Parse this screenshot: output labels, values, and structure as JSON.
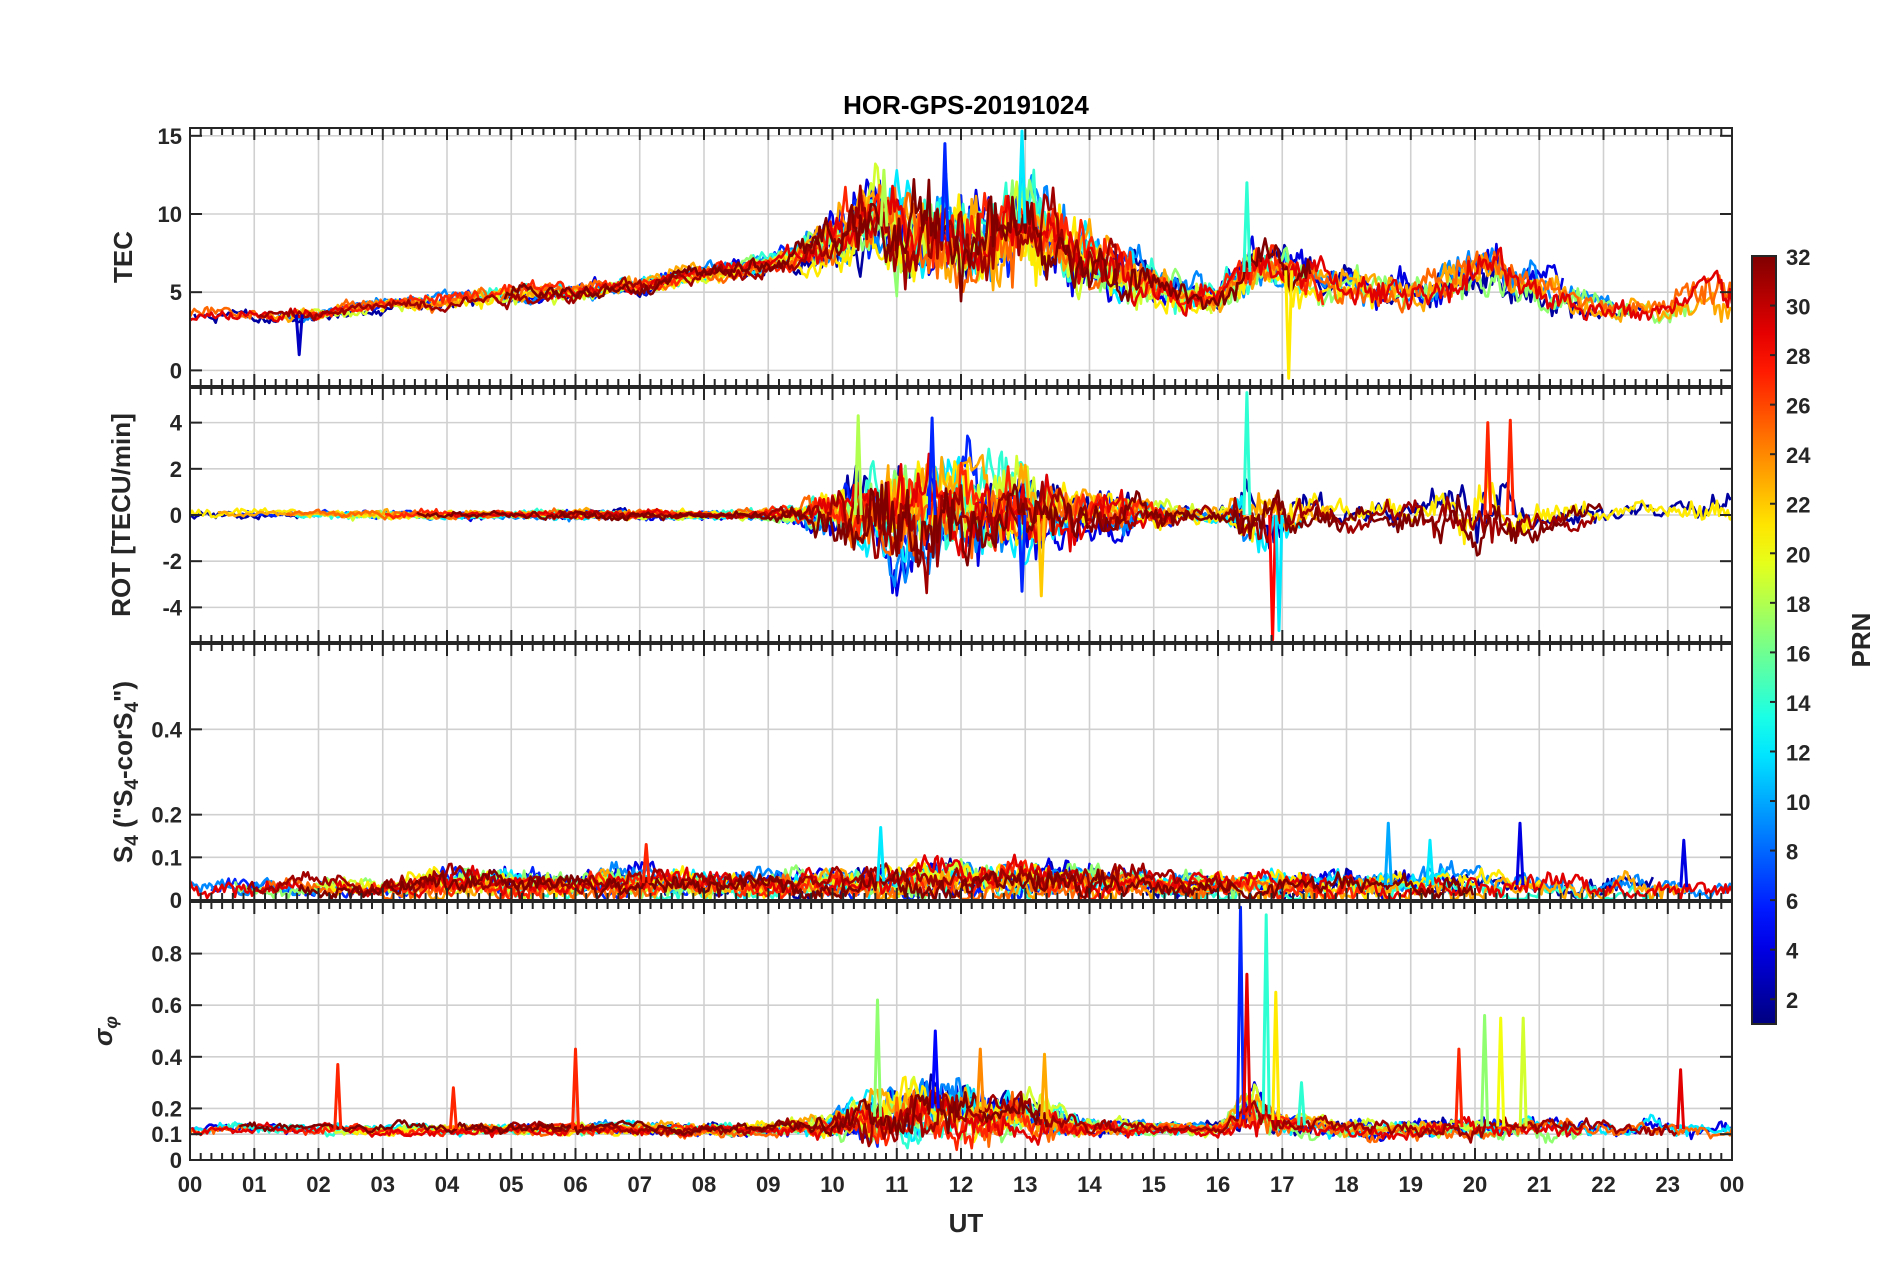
{
  "chart_data": {
    "type": "line",
    "title": "HOR-GPS-20191024",
    "xlabel": "UT",
    "x_ticks": [
      "00",
      "01",
      "02",
      "03",
      "04",
      "05",
      "06",
      "07",
      "08",
      "09",
      "10",
      "11",
      "12",
      "13",
      "14",
      "15",
      "16",
      "17",
      "18",
      "19",
      "20",
      "21",
      "22",
      "23",
      "00"
    ],
    "xlim_hours": [
      0,
      24
    ],
    "grid": true,
    "colorbar": {
      "label": "PRN",
      "ticks": [
        "2",
        "4",
        "6",
        "8",
        "10",
        "12",
        "14",
        "16",
        "18",
        "20",
        "22",
        "24",
        "26",
        "28",
        "30",
        "32"
      ],
      "range": [
        1,
        32
      ],
      "colormap": "jet",
      "placement": "right"
    },
    "panels": [
      {
        "ylabel": "TEC",
        "ylim": [
          -1,
          15.5
        ],
        "y_ticks": [
          "0",
          "5",
          "10",
          "15"
        ],
        "y_tick_values": [
          0,
          5,
          10,
          15
        ],
        "profile": {
          "x": [
            0,
            1,
            2,
            3,
            4,
            5,
            6,
            7,
            8,
            9,
            9.5,
            10,
            10.5,
            11,
            11.5,
            12,
            12.5,
            13,
            13.5,
            14,
            14.5,
            15,
            15.5,
            16,
            16.5,
            17,
            17.5,
            18,
            18.5,
            19,
            19.5,
            20,
            20.5,
            21,
            21.5,
            22,
            22.5,
            23,
            23.5,
            24
          ],
          "y": [
            3.5,
            3.5,
            3.6,
            4.2,
            4.6,
            4.8,
            5.0,
            5.5,
            6.2,
            6.8,
            7.5,
            8.5,
            9.5,
            9.0,
            8.5,
            8.0,
            8.5,
            9.5,
            8.5,
            7.0,
            6.0,
            5.5,
            5.0,
            4.5,
            6.5,
            6.5,
            6.0,
            5.5,
            5.0,
            5.0,
            5.5,
            6.5,
            6.0,
            5.5,
            4.5,
            4.0,
            3.8,
            3.5,
            4.5,
            5.0
          ],
          "noise": [
            0.4,
            0.4,
            0.4,
            0.4,
            0.5,
            0.5,
            0.5,
            0.5,
            0.5,
            0.6,
            0.9,
            1.6,
            2.2,
            2.6,
            2.8,
            2.8,
            2.8,
            2.8,
            2.4,
            2.0,
            1.6,
            1.2,
            1.0,
            0.8,
            1.6,
            1.3,
            1.2,
            1.1,
            1.0,
            1.0,
            1.3,
            1.6,
            1.6,
            1.2,
            0.9,
            0.8,
            0.7,
            0.7,
            1.3,
            1.3
          ]
        },
        "events": [
          {
            "x": 11.75,
            "y": 14.5,
            "prn": 6
          },
          {
            "x": 12.95,
            "y": 15.3,
            "prn": 12
          },
          {
            "x": 16.45,
            "y": 12.0,
            "prn": 14
          },
          {
            "x": 17.1,
            "y": -0.5,
            "prn": 21
          },
          {
            "x": 1.7,
            "y": 1.0,
            "prn": 3
          },
          {
            "x": 10.8,
            "y": 12.8,
            "prn": 18
          }
        ]
      },
      {
        "ylabel": "ROT [TECU/min]",
        "ylim": [
          -5.5,
          5.5
        ],
        "y_ticks": [
          "4",
          "2",
          "0",
          "-2",
          "-4"
        ],
        "y_tick_values": [
          4,
          2,
          0,
          -2,
          -4
        ],
        "profile": {
          "x": [
            0,
            1,
            2,
            3,
            4,
            5,
            6,
            7,
            8,
            9,
            9.5,
            10,
            10.5,
            11,
            11.5,
            12,
            12.5,
            13,
            13.5,
            14,
            14.5,
            15,
            15.5,
            16,
            16.5,
            17,
            17.5,
            18,
            18.5,
            19,
            19.5,
            20,
            20.5,
            21,
            21.5,
            22,
            22.5,
            23,
            23.5,
            24
          ],
          "y": [
            0,
            0,
            0,
            0,
            0,
            0,
            0,
            0,
            0,
            0,
            0,
            0,
            0,
            0,
            0,
            0,
            0,
            0,
            0,
            0,
            0,
            0,
            0,
            0,
            0,
            0,
            0,
            0,
            0,
            0,
            0,
            0,
            0,
            0,
            0,
            0,
            0,
            0,
            0,
            0
          ],
          "noise": [
            0.3,
            0.15,
            0.15,
            0.2,
            0.15,
            0.15,
            0.2,
            0.2,
            0.15,
            0.2,
            0.4,
            1.0,
            1.6,
            2.0,
            2.0,
            1.8,
            1.6,
            1.6,
            1.2,
            0.9,
            0.7,
            0.5,
            0.4,
            0.3,
            1.2,
            1.0,
            0.6,
            0.5,
            0.5,
            0.6,
            1.0,
            1.2,
            1.0,
            0.6,
            0.5,
            0.4,
            0.4,
            0.3,
            0.6,
            0.6
          ]
        },
        "events": [
          {
            "x": 10.4,
            "y": 4.3,
            "prn": 18
          },
          {
            "x": 11.55,
            "y": 4.2,
            "prn": 6
          },
          {
            "x": 16.45,
            "y": 5.3,
            "prn": 14
          },
          {
            "x": 16.85,
            "y": -5.4,
            "prn": 28
          },
          {
            "x": 16.95,
            "y": -5.0,
            "prn": 12
          },
          {
            "x": 20.2,
            "y": 4.0,
            "prn": 27
          },
          {
            "x": 20.55,
            "y": 4.1,
            "prn": 27
          },
          {
            "x": 13.25,
            "y": -3.5,
            "prn": 22
          },
          {
            "x": 12.95,
            "y": -3.3,
            "prn": 6
          }
        ]
      },
      {
        "ylabel": "S4 (\"S4-corS4\")",
        "ylabel_parts": {
          "main": "S",
          "sub1": "4",
          "paren_open": " (\"S",
          "sub2": "4",
          "mid": "-corS",
          "sub3": "4",
          "paren_close": "\")"
        },
        "ylim": [
          0,
          0.6
        ],
        "y_ticks": [
          "0.4",
          "0.2",
          "0.1",
          "0"
        ],
        "y_tick_values": [
          0.4,
          0.2,
          0.1,
          0
        ],
        "profile": {
          "x": [
            0,
            1,
            2,
            3,
            4,
            5,
            6,
            7,
            8,
            9,
            10,
            11,
            12,
            13,
            14,
            15,
            16,
            17,
            18,
            19,
            20,
            21,
            22,
            23,
            24
          ],
          "y": [
            0.03,
            0.03,
            0.03,
            0.03,
            0.035,
            0.035,
            0.035,
            0.04,
            0.035,
            0.035,
            0.04,
            0.045,
            0.045,
            0.045,
            0.045,
            0.035,
            0.03,
            0.035,
            0.035,
            0.035,
            0.035,
            0.035,
            0.03,
            0.03,
            0.03
          ],
          "noise": [
            0.025,
            0.02,
            0.02,
            0.02,
            0.03,
            0.03,
            0.025,
            0.03,
            0.025,
            0.025,
            0.03,
            0.035,
            0.035,
            0.035,
            0.035,
            0.025,
            0.025,
            0.03,
            0.03,
            0.03,
            0.03,
            0.025,
            0.025,
            0.025,
            0.025
          ]
        },
        "events": [
          {
            "x": 10.75,
            "y": 0.17,
            "prn": 12
          },
          {
            "x": 18.65,
            "y": 0.18,
            "prn": 10
          },
          {
            "x": 20.7,
            "y": 0.18,
            "prn": 4
          },
          {
            "x": 23.25,
            "y": 0.14,
            "prn": 4
          },
          {
            "x": 7.1,
            "y": 0.13,
            "prn": 27
          },
          {
            "x": 19.3,
            "y": 0.14,
            "prn": 12
          }
        ]
      },
      {
        "ylabel": "σφ",
        "ylabel_parts": {
          "main": "σ",
          "sub": "φ"
        },
        "ylim": [
          0,
          1.0
        ],
        "y_ticks": [
          "0.8",
          "0.6",
          "0.4",
          "0.2",
          "0.1",
          "0"
        ],
        "y_tick_values": [
          0.8,
          0.6,
          0.4,
          0.2,
          0.1,
          0
        ],
        "profile": {
          "x": [
            0,
            1,
            2,
            3,
            4,
            5,
            6,
            7,
            8,
            9,
            10,
            10.5,
            11,
            11.5,
            12,
            12.5,
            13,
            13.5,
            14,
            15,
            16,
            16.3,
            16.6,
            17,
            18,
            19,
            20,
            21,
            22,
            23,
            24
          ],
          "y": [
            0.12,
            0.12,
            0.12,
            0.12,
            0.12,
            0.12,
            0.12,
            0.12,
            0.12,
            0.12,
            0.13,
            0.16,
            0.18,
            0.2,
            0.2,
            0.18,
            0.17,
            0.15,
            0.13,
            0.12,
            0.12,
            0.15,
            0.2,
            0.14,
            0.12,
            0.12,
            0.13,
            0.13,
            0.12,
            0.12,
            0.12
          ],
          "noise": [
            0.02,
            0.02,
            0.02,
            0.02,
            0.02,
            0.02,
            0.02,
            0.02,
            0.02,
            0.02,
            0.04,
            0.08,
            0.1,
            0.1,
            0.1,
            0.08,
            0.07,
            0.05,
            0.03,
            0.02,
            0.02,
            0.06,
            0.08,
            0.04,
            0.03,
            0.03,
            0.04,
            0.04,
            0.03,
            0.03,
            0.03
          ]
        },
        "events": [
          {
            "x": 2.3,
            "y": 0.37,
            "prn": 27
          },
          {
            "x": 4.1,
            "y": 0.28,
            "prn": 27
          },
          {
            "x": 6.0,
            "y": 0.43,
            "prn": 27
          },
          {
            "x": 10.7,
            "y": 0.62,
            "prn": 17
          },
          {
            "x": 11.6,
            "y": 0.5,
            "prn": 5
          },
          {
            "x": 12.3,
            "y": 0.43,
            "prn": 24
          },
          {
            "x": 13.3,
            "y": 0.41,
            "prn": 23
          },
          {
            "x": 16.35,
            "y": 0.98,
            "prn": 6
          },
          {
            "x": 16.45,
            "y": 0.72,
            "prn": 29
          },
          {
            "x": 16.75,
            "y": 0.95,
            "prn": 14
          },
          {
            "x": 16.9,
            "y": 0.65,
            "prn": 21
          },
          {
            "x": 17.3,
            "y": 0.3,
            "prn": 14
          },
          {
            "x": 19.75,
            "y": 0.43,
            "prn": 27
          },
          {
            "x": 20.15,
            "y": 0.56,
            "prn": 17
          },
          {
            "x": 20.4,
            "y": 0.55,
            "prn": 20
          },
          {
            "x": 20.75,
            "y": 0.55,
            "prn": 19
          },
          {
            "x": 23.2,
            "y": 0.35,
            "prn": 29
          }
        ]
      }
    ]
  }
}
